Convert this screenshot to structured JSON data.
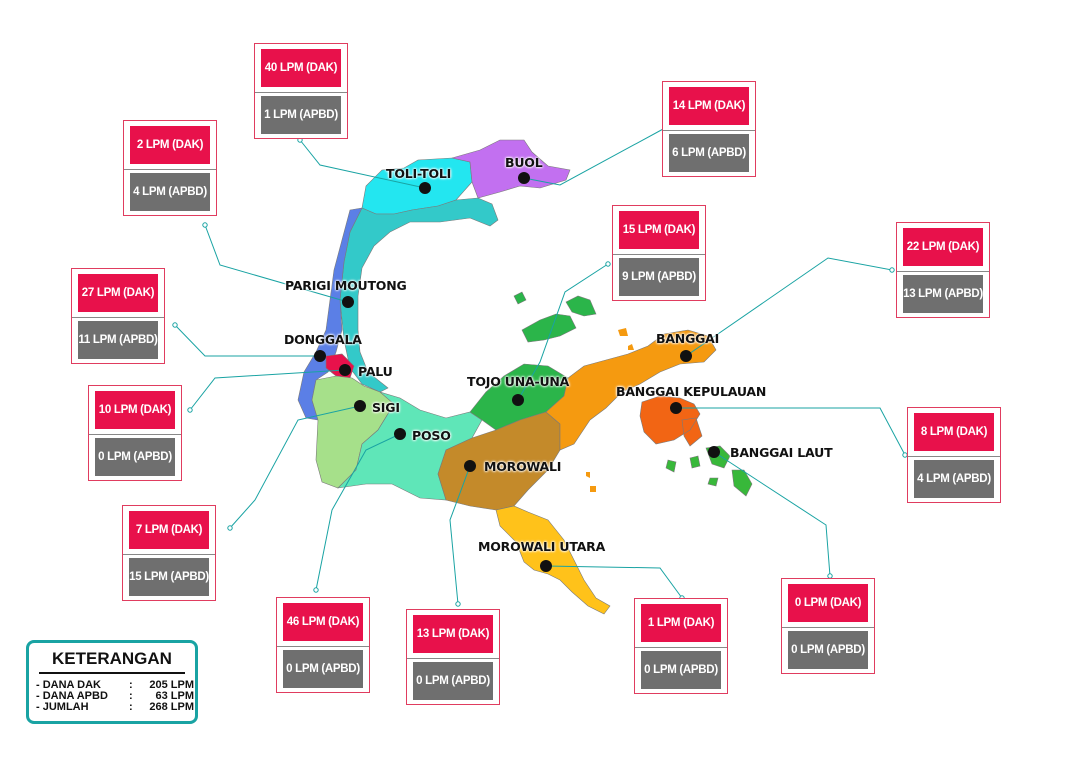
{
  "regions": [
    {
      "id": "tolitoli",
      "name": "TOLI-TOLI",
      "dak": "40 LPM (DAK)",
      "apbd": "1 LPM (APBD)",
      "color": "#23e6f0"
    },
    {
      "id": "buol",
      "name": "BUOL",
      "dak": "14 LPM (DAK)",
      "apbd": "6 LPM (APBD)",
      "color": "#c270f0"
    },
    {
      "id": "parigi",
      "name": "PARIGI MOUTONG",
      "dak": "2 LPM (DAK)",
      "apbd": "4 LPM (APBD)",
      "color": "#33c9c9"
    },
    {
      "id": "donggala",
      "name": "DONGGALA",
      "dak": "27 LPM (DAK)",
      "apbd": "11 LPM (APBD)",
      "color": "#5b7fe6"
    },
    {
      "id": "palu",
      "name": "PALU",
      "dak": "10 LPM (DAK)",
      "apbd": "0 LPM (APBD)",
      "color": "#e8114b"
    },
    {
      "id": "sigi",
      "name": "SIGI",
      "dak": "7 LPM (DAK)",
      "apbd": "15 LPM (APBD)",
      "color": "#a6e08a"
    },
    {
      "id": "poso",
      "name": "POSO",
      "dak": "46 LPM (DAK)",
      "apbd": "0 LPM (APBD)",
      "color": "#5fe6b8"
    },
    {
      "id": "tojo",
      "name": "TOJO UNA-UNA",
      "dak": "15 LPM (DAK)",
      "apbd": "9 LPM (APBD)",
      "color": "#2bb54a"
    },
    {
      "id": "morowali",
      "name": "MOROWALI",
      "dak": "13 LPM (DAK)",
      "apbd": "0 LPM (APBD)",
      "color": "#c48a2a"
    },
    {
      "id": "morowaliutara",
      "name": "MOROWALI UTARA",
      "dak": "1 LPM (DAK)",
      "apbd": "0 LPM (APBD)",
      "color": "#ffc21a"
    },
    {
      "id": "banggai",
      "name": "BANGGAI",
      "dak": "22 LPM (DAK)",
      "apbd": "13 LPM (APBD)",
      "color": "#f59a10"
    },
    {
      "id": "banggaikep",
      "name": "BANGGAI KEPULAUAN",
      "dak": "8 LPM (DAK)",
      "apbd": "4 LPM (APBD)",
      "color": "#f26514"
    },
    {
      "id": "banggailaut",
      "name": "BANGGAI LAUT",
      "dak": "0 LPM (DAK)",
      "apbd": "0 LPM (APBD)",
      "color": "#38b83a"
    }
  ],
  "legend": {
    "title": "KETERANGAN",
    "rows": [
      {
        "key": "- DANA DAK",
        "colon": ":",
        "value": "205 LPM"
      },
      {
        "key": "- DANA APBD",
        "colon": ":",
        "value": "63 LPM"
      },
      {
        "key": "- JUMLAH",
        "colon": ":",
        "value": "268 LPM"
      }
    ]
  },
  "colors": {
    "dak": "#e8114b",
    "apbd": "#6f6f6f",
    "leader": "#19a3a3",
    "legend_border": "#19a3a3"
  }
}
